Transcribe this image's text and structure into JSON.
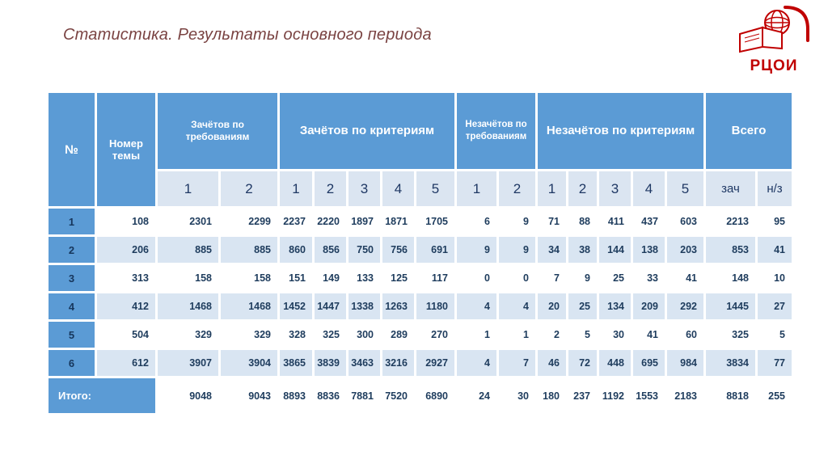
{
  "title": "Статистика. Результаты основного периода",
  "logo": {
    "text": "РЦОИ"
  },
  "table": {
    "header": {
      "num": "№",
      "topic": "Номер темы",
      "groups": [
        {
          "label": "Зачётов по требованиям"
        },
        {
          "label": "Зачётов по критериям"
        },
        {
          "label": "Незачётов по требованиям"
        },
        {
          "label": "Незачётов по критериям"
        },
        {
          "label": "Всего"
        }
      ],
      "subheaders": [
        "1",
        "2",
        "1",
        "2",
        "3",
        "4",
        "5",
        "1",
        "2",
        "1",
        "2",
        "3",
        "4",
        "5",
        "зач",
        "н/з"
      ]
    },
    "rows": [
      {
        "num": "1",
        "cells": [
          "108",
          "2301",
          "2299",
          "2237",
          "2220",
          "1897",
          "1871",
          "1705",
          "6",
          "9",
          "71",
          "88",
          "411",
          "437",
          "603",
          "2213",
          "95"
        ]
      },
      {
        "num": "2",
        "cells": [
          "206",
          "885",
          "885",
          "860",
          "856",
          "750",
          "756",
          "691",
          "9",
          "9",
          "34",
          "38",
          "144",
          "138",
          "203",
          "853",
          "41"
        ]
      },
      {
        "num": "3",
        "cells": [
          "313",
          "158",
          "158",
          "151",
          "149",
          "133",
          "125",
          "117",
          "0",
          "0",
          "7",
          "9",
          "25",
          "33",
          "41",
          "148",
          "10"
        ]
      },
      {
        "num": "4",
        "cells": [
          "412",
          "1468",
          "1468",
          "1452",
          "1447",
          "1338",
          "1263",
          "1180",
          "4",
          "4",
          "20",
          "25",
          "134",
          "209",
          "292",
          "1445",
          "27"
        ]
      },
      {
        "num": "5",
        "cells": [
          "504",
          "329",
          "329",
          "328",
          "325",
          "300",
          "289",
          "270",
          "1",
          "1",
          "2",
          "5",
          "30",
          "41",
          "60",
          "325",
          "5"
        ]
      },
      {
        "num": "6",
        "cells": [
          "612",
          "3907",
          "3904",
          "3865",
          "3839",
          "3463",
          "3216",
          "2927",
          "4",
          "7",
          "46",
          "72",
          "448",
          "695",
          "984",
          "3834",
          "77"
        ]
      }
    ],
    "total": {
      "label": "Итого:",
      "cells": [
        "9048",
        "9043",
        "8893",
        "8836",
        "7881",
        "7520",
        "6890",
        "24",
        "30",
        "180",
        "237",
        "1192",
        "1553",
        "2183",
        "8818",
        "255"
      ]
    }
  }
}
